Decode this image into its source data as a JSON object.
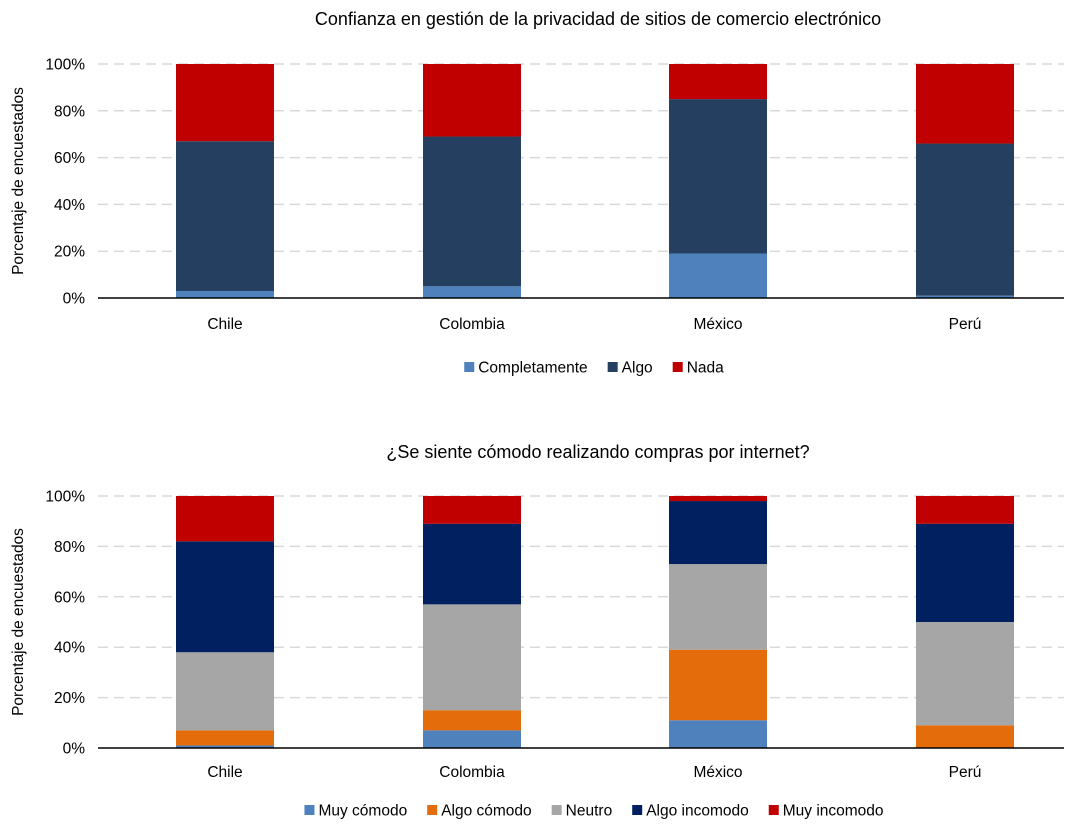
{
  "chart_data": [
    {
      "type": "bar",
      "stacked": true,
      "title": "Confianza en gestión de la privacidad de sitios de comercio electrónico",
      "xlabel": "",
      "ylabel": "Porcentaje de encuestados",
      "ylim": [
        0,
        100
      ],
      "yticks": [
        "0%",
        "20%",
        "40%",
        "60%",
        "80%",
        "100%"
      ],
      "grid": true,
      "legend_position": "bottom",
      "categories": [
        "Chile",
        "Colombia",
        "México",
        "Perú"
      ],
      "series": [
        {
          "name": "Completamente",
          "color": "#4f81bd",
          "values": [
            3,
            5,
            19,
            1
          ]
        },
        {
          "name": "Algo",
          "color": "#243f60",
          "values": [
            64,
            64,
            66,
            65
          ]
        },
        {
          "name": "Nada",
          "color": "#c00000",
          "values": [
            33,
            31,
            15,
            34
          ]
        }
      ]
    },
    {
      "type": "bar",
      "stacked": true,
      "title": "¿Se siente cómodo realizando compras por internet?",
      "xlabel": "",
      "ylabel": "Porcentaje de encuestados",
      "ylim": [
        0,
        100
      ],
      "yticks": [
        "0%",
        "20%",
        "40%",
        "60%",
        "80%",
        "100%"
      ],
      "grid": true,
      "legend_position": "bottom",
      "categories": [
        "Chile",
        "Colombia",
        "México",
        "Perú"
      ],
      "series": [
        {
          "name": "Muy cómodo",
          "color": "#4f81bd",
          "values": [
            1,
            7,
            11,
            0
          ]
        },
        {
          "name": "Algo cómodo",
          "color": "#e46c0a",
          "values": [
            6,
            8,
            28,
            9
          ]
        },
        {
          "name": "Neutro",
          "color": "#a6a6a6",
          "values": [
            31,
            42,
            34,
            41
          ]
        },
        {
          "name": "Algo incomodo",
          "color": "#002060",
          "values": [
            44,
            32,
            25,
            39
          ]
        },
        {
          "name": "Muy incomodo",
          "color": "#c00000",
          "values": [
            18,
            11,
            2,
            11
          ]
        }
      ]
    }
  ]
}
